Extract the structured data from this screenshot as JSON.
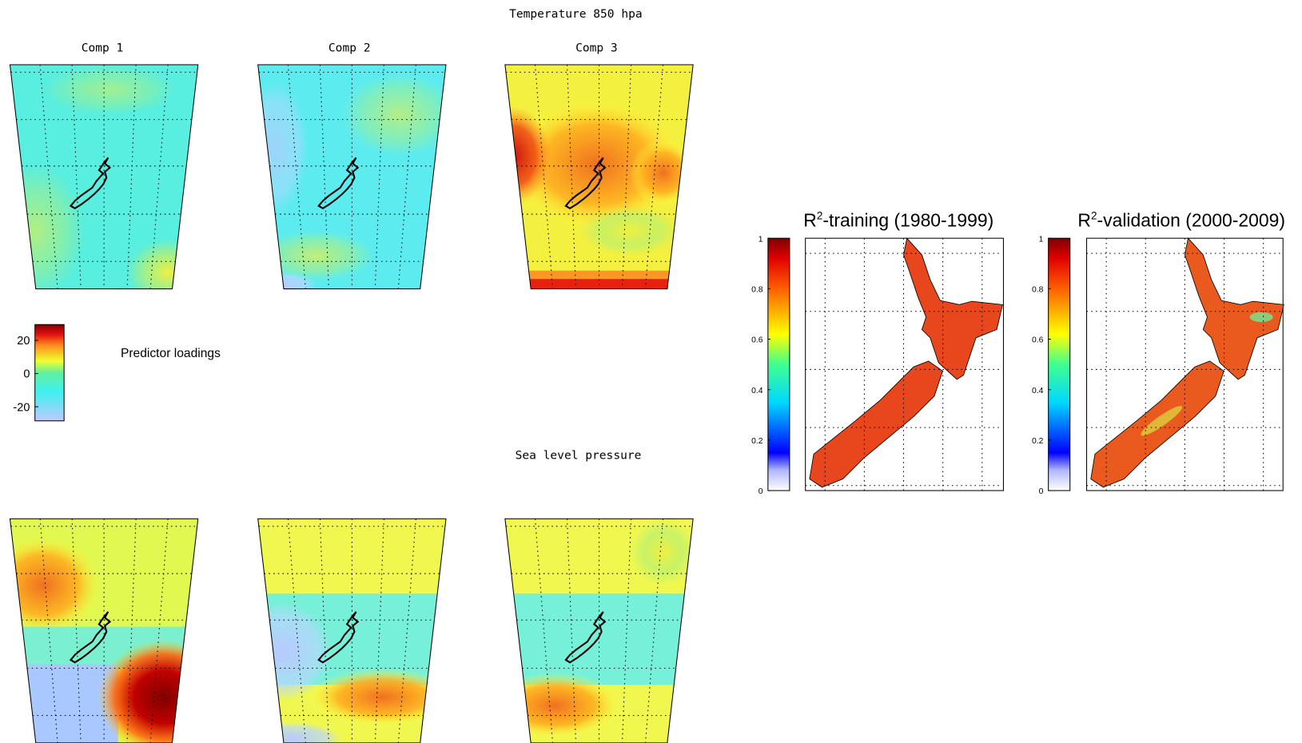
{
  "top_title": "Temperature 850 hpa",
  "bottom_title": "Sea level pressure",
  "panel_titles": [
    "Comp 1",
    "Comp 2",
    "Comp 3"
  ],
  "predictor_colorbar": {
    "label": "Predictor loadings",
    "clim": [
      -28.5,
      29.5
    ],
    "ticks": [
      20,
      0,
      -20
    ]
  },
  "r2_maps": [
    {
      "title_base": "R",
      "title_sup": "2",
      "title_rest": "-training (1980-1999)"
    },
    {
      "title_base": "R",
      "title_sup": "2",
      "title_rest": "-validation (2000-2009)"
    }
  ],
  "r2_colorbar": {
    "clim": [
      0,
      1
    ],
    "ticks": [
      0,
      0.2,
      0.4,
      0.6,
      0.8,
      1
    ]
  }
}
